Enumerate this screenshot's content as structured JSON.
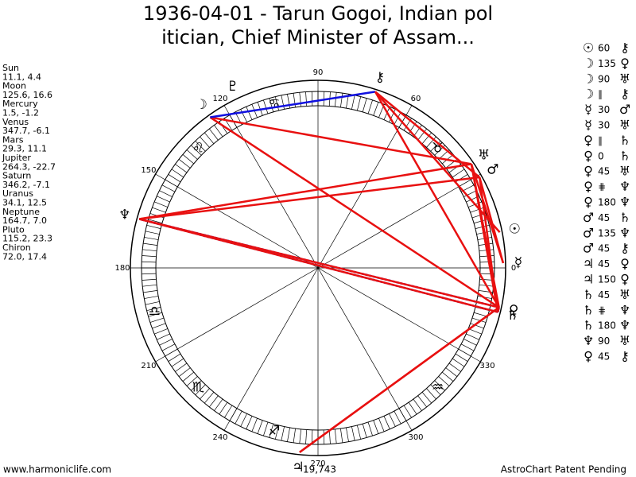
{
  "title": [
    "1936-04-01 - Tarun Gogoi, Indian pol",
    "itician, Chief Minister of Assam..."
  ],
  "planets": [
    {
      "name": "Sun",
      "glyph": "☉",
      "lon": 11.1,
      "lat": 4.4,
      "label": "11.1, 4.4"
    },
    {
      "name": "Moon",
      "glyph": "☽",
      "lon": 125.6,
      "lat": 16.6,
      "label": "125.6, 16.6"
    },
    {
      "name": "Mercury",
      "glyph": "☿",
      "lon": 1.5,
      "lat": -1.2,
      "label": "1.5, -1.2"
    },
    {
      "name": "Venus",
      "glyph": "♀",
      "lon": 347.7,
      "lat": -6.1,
      "label": "347.7, -6.1"
    },
    {
      "name": "Mars",
      "glyph": "♂",
      "lon": 29.3,
      "lat": 11.1,
      "label": "29.3, 11.1"
    },
    {
      "name": "Jupiter",
      "glyph": "♃",
      "lon": 264.3,
      "lat": -22.7,
      "label": "264.3, -22.7"
    },
    {
      "name": "Saturn",
      "glyph": "♄",
      "lon": 346.2,
      "lat": -7.1,
      "label": "346.2, -7.1"
    },
    {
      "name": "Uranus",
      "glyph": "♅",
      "lon": 34.1,
      "lat": 12.5,
      "label": "34.1, 12.5"
    },
    {
      "name": "Neptune",
      "glyph": "♆",
      "lon": 164.7,
      "lat": 7.0,
      "label": "164.7, 7.0"
    },
    {
      "name": "Pluto",
      "glyph": "♇",
      "lon": 115.2,
      "lat": 23.3,
      "label": "115.2, 23.3"
    },
    {
      "name": "Chiron",
      "glyph": "⚷",
      "lon": 72.0,
      "lat": 17.4,
      "label": "72.0, 17.4"
    }
  ],
  "signs": [
    null,
    "♉",
    null,
    "♋",
    "♌",
    null,
    "♎",
    "♏",
    "♐",
    null,
    "♒",
    null
  ],
  "wheel_degrees": [
    0,
    60,
    90,
    120,
    150,
    180,
    210,
    240,
    270,
    300,
    330
  ],
  "aspects": [
    {
      "p1": "☉",
      "aspect": 60,
      "p2": "⚷"
    },
    {
      "p1": "☽",
      "aspect": 135,
      "p2": "♀"
    },
    {
      "p1": "☽",
      "aspect": 90,
      "p2": "♅"
    },
    {
      "p1": "☽",
      "aspect": "∥",
      "p2": "⚷"
    },
    {
      "p1": "☿",
      "aspect": 30,
      "p2": "♂"
    },
    {
      "p1": "☿",
      "aspect": 30,
      "p2": "♅"
    },
    {
      "p1": "♀",
      "aspect": "∥",
      "p2": "♄"
    },
    {
      "p1": "♀",
      "aspect": 0,
      "p2": "♄"
    },
    {
      "p1": "♀",
      "aspect": 45,
      "p2": "♅"
    },
    {
      "p1": "♀",
      "aspect": "⋕",
      "p2": "♆"
    },
    {
      "p1": "♀",
      "aspect": 180,
      "p2": "♆"
    },
    {
      "p1": "♂",
      "aspect": 45,
      "p2": "♄"
    },
    {
      "p1": "♂",
      "aspect": 135,
      "p2": "♆"
    },
    {
      "p1": "♂",
      "aspect": 45,
      "p2": "⚷"
    },
    {
      "p1": "♃",
      "aspect": 45,
      "p2": "♀"
    },
    {
      "p1": "♃",
      "aspect": 150,
      "p2": "♀"
    },
    {
      "p1": "♄",
      "aspect": 45,
      "p2": "♅"
    },
    {
      "p1": "♄",
      "aspect": "⋕",
      "p2": "♆"
    },
    {
      "p1": "♄",
      "aspect": 180,
      "p2": "♆"
    },
    {
      "p1": "♆",
      "aspect": 90,
      "p2": "♅"
    },
    {
      "p1": "♀",
      "aspect": 45,
      "p2": "⚷"
    }
  ],
  "footer": {
    "left": "www.harmoniclife.com",
    "center": "19,743",
    "right": "AstroChart Patent Pending"
  }
}
